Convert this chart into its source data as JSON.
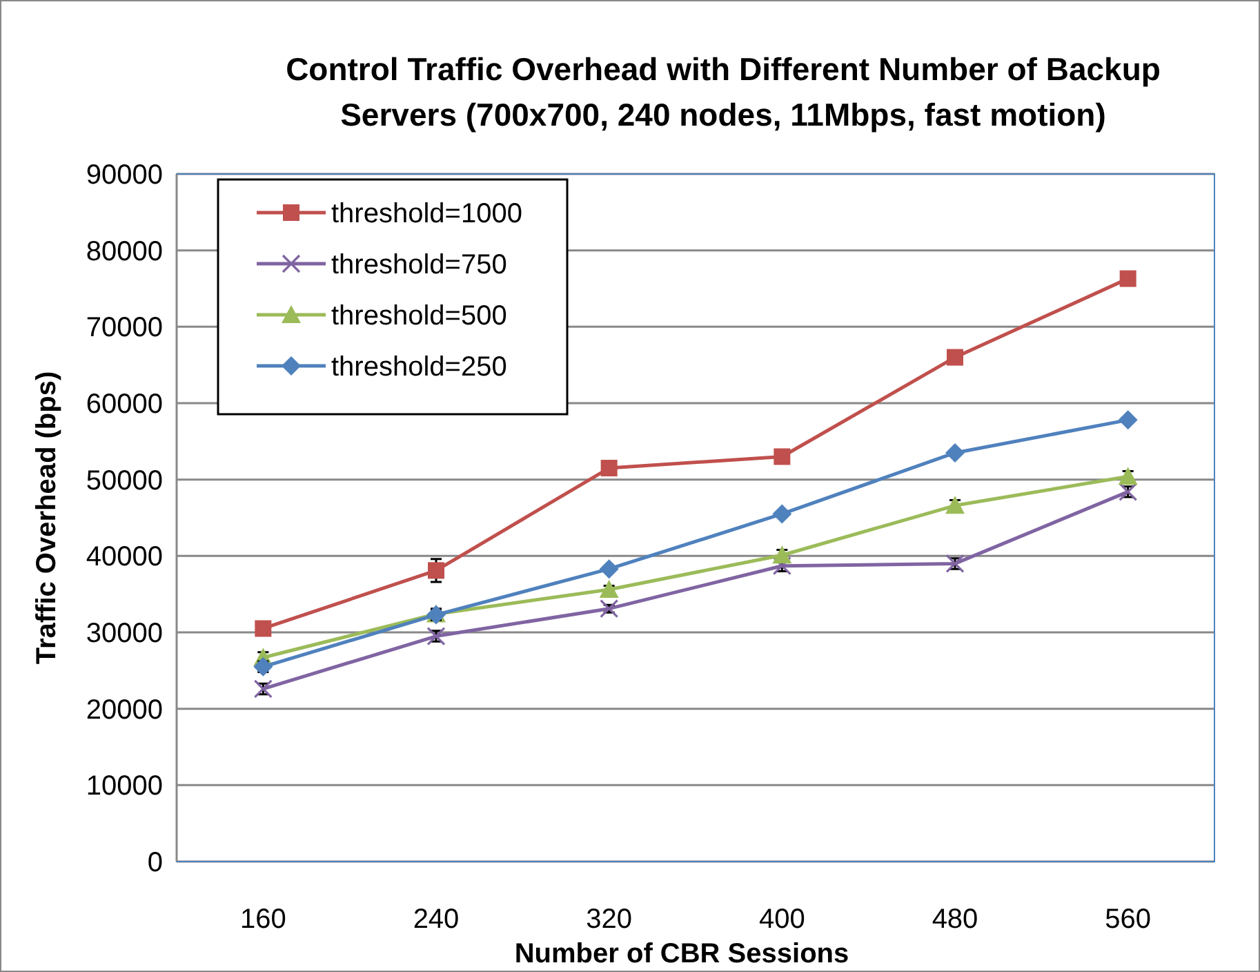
{
  "chart_data": {
    "type": "line",
    "title": "Control Traffic Overhead with Different Number of Backup Servers (700x700, 240 nodes, 11Mbps, fast motion)",
    "xlabel": "Number of CBR Sessions",
    "ylabel": "Traffic Overhead (bps)",
    "categories": [
      "160",
      "240",
      "320",
      "400",
      "480",
      "560"
    ],
    "ylim": [
      0,
      90000
    ],
    "yticks": [
      0,
      10000,
      20000,
      30000,
      40000,
      50000,
      60000,
      70000,
      80000,
      90000
    ],
    "grid": "y",
    "legend": "top left",
    "series": [
      {
        "name": "threshold=1000",
        "color": "#c0504d",
        "marker": "square",
        "values": [
          30500,
          38100,
          51500,
          53000,
          66000,
          76300
        ],
        "errors": [
          null,
          1500,
          null,
          null,
          null,
          null
        ]
      },
      {
        "name": "threshold=750",
        "color": "#8064a2",
        "marker": "cross",
        "values": [
          22600,
          29500,
          33100,
          38700,
          39000,
          48400
        ],
        "errors": [
          700,
          700,
          500,
          700,
          700,
          700
        ]
      },
      {
        "name": "threshold=500",
        "color": "#9bbb59",
        "marker": "triangle",
        "values": [
          26700,
          32400,
          35600,
          40100,
          46600,
          50400
        ],
        "errors": [
          700,
          700,
          500,
          700,
          700,
          700
        ]
      },
      {
        "name": "threshold=250",
        "color": "#4f81bd",
        "marker": "diamond",
        "values": [
          25500,
          32300,
          38300,
          45500,
          53500,
          57800
        ],
        "errors": [
          700,
          700,
          null,
          null,
          null,
          null
        ]
      }
    ]
  }
}
